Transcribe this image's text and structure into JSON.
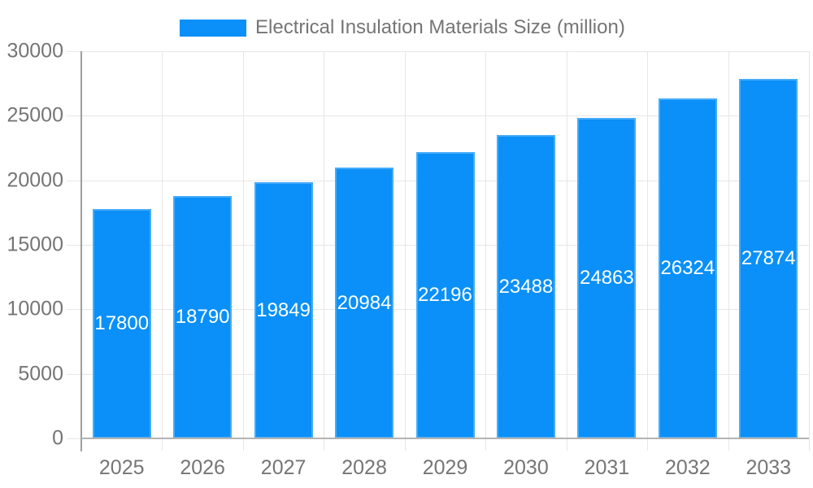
{
  "legend": {
    "label": "Electrical Insulation Materials Size (million)"
  },
  "chart_data": {
    "type": "bar",
    "title": "Electrical Insulation Materials Size (million)",
    "categories": [
      "2025",
      "2026",
      "2027",
      "2028",
      "2029",
      "2030",
      "2031",
      "2032",
      "2033"
    ],
    "values": [
      17800,
      18790,
      19849,
      20984,
      22196,
      23488,
      24863,
      26324,
      27874
    ],
    "xlabel": "",
    "ylabel": "",
    "ylim": [
      0,
      30000
    ],
    "yticks": [
      0,
      5000,
      10000,
      15000,
      20000,
      25000,
      30000
    ],
    "grid": true,
    "legend_position": "top-center",
    "value_labels": "inside-center",
    "colors": {
      "bar": "#0a90f8",
      "value_label_text": "#ffffff",
      "axis_text": "#757575",
      "gridline": "#e6e6e6",
      "y_axis_line": "#9e9e9e",
      "baseline": "#b3b3b3"
    }
  }
}
